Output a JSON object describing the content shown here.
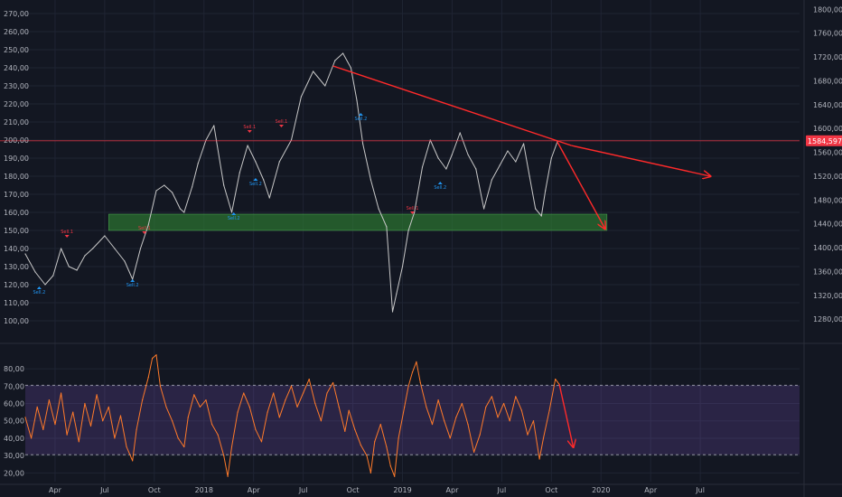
{
  "chart_data": [
    {
      "type": "line",
      "panel": "price",
      "title": "",
      "left_axis": {
        "ylim": [
          90,
          275
        ],
        "ticks": [
          "100,00",
          "110,00",
          "120,00",
          "130,00",
          "140,00",
          "150,00",
          "160,00",
          "170,00",
          "180,00",
          "190,00",
          "200,00",
          "210,00",
          "220,00",
          "230,00",
          "240,00",
          "250,00",
          "260,00",
          "270,00"
        ]
      },
      "right_axis": {
        "ylim": [
          1247,
          1808
        ],
        "ticks": [
          "1280,000",
          "1320,000",
          "1360,000",
          "1400,000",
          "1440,000",
          "1480,000",
          "1520,000",
          "1560,000",
          "1600,000",
          "1640,000",
          "1680,000",
          "1720,000",
          "1760,000",
          "1800,000"
        ]
      },
      "x_axis": {
        "range": [
          2017.1,
          2021.0
        ],
        "ticks": [
          {
            "t": 2017.25,
            "label": "Apr"
          },
          {
            "t": 2017.5,
            "label": "Jul"
          },
          {
            "t": 2017.75,
            "label": "Oct"
          },
          {
            "t": 2018.0,
            "label": "2018"
          },
          {
            "t": 2018.25,
            "label": "Apr"
          },
          {
            "t": 2018.5,
            "label": "Jul"
          },
          {
            "t": 2018.75,
            "label": "Oct"
          },
          {
            "t": 2019.0,
            "label": "2019"
          },
          {
            "t": 2019.25,
            "label": "Apr"
          },
          {
            "t": 2019.5,
            "label": "Jul"
          },
          {
            "t": 2019.75,
            "label": "Oct"
          },
          {
            "t": 2020.0,
            "label": "2020"
          },
          {
            "t": 2020.25,
            "label": "Apr"
          },
          {
            "t": 2020.5,
            "label": "Jul"
          }
        ]
      },
      "series": [
        {
          "color": "#c8c8c8",
          "points": [
            [
              2017.1,
              137
            ],
            [
              2017.15,
              127
            ],
            [
              2017.2,
              120
            ],
            [
              2017.24,
              125
            ],
            [
              2017.28,
              140
            ],
            [
              2017.32,
              130
            ],
            [
              2017.36,
              128
            ],
            [
              2017.4,
              136
            ],
            [
              2017.44,
              140
            ],
            [
              2017.5,
              147
            ],
            [
              2017.55,
              140
            ],
            [
              2017.6,
              133
            ],
            [
              2017.64,
              123
            ],
            [
              2017.68,
              140
            ],
            [
              2017.72,
              153
            ],
            [
              2017.76,
              172
            ],
            [
              2017.8,
              175
            ],
            [
              2017.84,
              171
            ],
            [
              2017.88,
              162
            ],
            [
              2017.9,
              160
            ],
            [
              2017.94,
              174
            ],
            [
              2017.97,
              187
            ],
            [
              2018.01,
              200
            ],
            [
              2018.05,
              208
            ],
            [
              2018.1,
              175
            ],
            [
              2018.14,
              160
            ],
            [
              2018.18,
              182
            ],
            [
              2018.22,
              197
            ],
            [
              2018.26,
              188
            ],
            [
              2018.3,
              178
            ],
            [
              2018.33,
              168
            ],
            [
              2018.38,
              188
            ],
            [
              2018.44,
              200
            ],
            [
              2018.49,
              224
            ],
            [
              2018.55,
              238
            ],
            [
              2018.61,
              230
            ],
            [
              2018.66,
              244
            ],
            [
              2018.7,
              248
            ],
            [
              2018.74,
              240
            ],
            [
              2018.77,
              222
            ],
            [
              2018.8,
              198
            ],
            [
              2018.84,
              178
            ],
            [
              2018.88,
              162
            ],
            [
              2018.92,
              152
            ],
            [
              2018.95,
              105
            ],
            [
              2018.97,
              115
            ],
            [
              2019.0,
              130
            ],
            [
              2019.03,
              150
            ],
            [
              2019.06,
              160
            ],
            [
              2019.1,
              185
            ],
            [
              2019.14,
              200
            ],
            [
              2019.18,
              190
            ],
            [
              2019.22,
              184
            ],
            [
              2019.25,
              192
            ],
            [
              2019.29,
              204
            ],
            [
              2019.33,
              192
            ],
            [
              2019.37,
              184
            ],
            [
              2019.41,
              162
            ],
            [
              2019.45,
              178
            ],
            [
              2019.49,
              186
            ],
            [
              2019.53,
              194
            ],
            [
              2019.57,
              188
            ],
            [
              2019.61,
              198
            ],
            [
              2019.64,
              180
            ],
            [
              2019.67,
              162
            ],
            [
              2019.7,
              158
            ],
            [
              2019.72,
              172
            ],
            [
              2019.75,
              190
            ],
            [
              2019.78,
              199
            ]
          ]
        }
      ],
      "support_zone": {
        "ymin": 150,
        "ymax": 159,
        "t_start": 2017.52,
        "t_end": 2020.03,
        "color": "#2e7d32"
      },
      "resistance_trendline": {
        "from": [
          2018.65,
          241
        ],
        "to": [
          2019.85,
          197
        ],
        "color": "#ff2a2a"
      },
      "projection_arrows": [
        {
          "from": [
            2019.85,
            197
          ],
          "to": [
            2020.55,
            180
          ],
          "color": "#ff2a2a"
        },
        {
          "from": [
            2019.78,
            199
          ],
          "to": [
            2020.02,
            151
          ],
          "color": "#ff2a2a"
        }
      ],
      "horizontal_line": {
        "y": 199.6,
        "color": "#f23645"
      },
      "price_label": "1584,597",
      "signals": [
        {
          "kind": "buy",
          "t": 2017.17,
          "y": 120,
          "label": "Sell.2"
        },
        {
          "kind": "sell",
          "t": 2017.31,
          "y": 145,
          "label": "Sell.1"
        },
        {
          "kind": "buy",
          "t": 2017.64,
          "y": 124,
          "label": "Sell.2"
        },
        {
          "kind": "sell",
          "t": 2017.7,
          "y": 147,
          "label": "Sell.1"
        },
        {
          "kind": "buy",
          "t": 2018.15,
          "y": 161,
          "label": "Sell.2"
        },
        {
          "kind": "sell",
          "t": 2018.23,
          "y": 203,
          "label": "Sell.1"
        },
        {
          "kind": "buy",
          "t": 2018.26,
          "y": 180,
          "label": "Sell.2"
        },
        {
          "kind": "sell",
          "t": 2018.39,
          "y": 206,
          "label": "Sell.1"
        },
        {
          "kind": "buy",
          "t": 2018.79,
          "y": 216,
          "label": "Sell.2"
        },
        {
          "kind": "buy",
          "t": 2019.19,
          "y": 178,
          "label": "Sell.2"
        },
        {
          "kind": "sell",
          "t": 2019.05,
          "y": 158,
          "label": "Sell.1"
        }
      ]
    },
    {
      "type": "line",
      "panel": "oscillator",
      "title": "",
      "ylim": [
        15,
        92
      ],
      "ticks": [
        "20,00",
        "30,00",
        "40,00",
        "50,00",
        "60,00",
        "70,00",
        "80,00"
      ],
      "band": {
        "upper": 70.5,
        "lower": 30.5,
        "color": "#7e57c2"
      },
      "series": [
        {
          "color": "#ff7a2a",
          "points": [
            [
              2017.1,
              52
            ],
            [
              2017.13,
              40
            ],
            [
              2017.16,
              58
            ],
            [
              2017.19,
              45
            ],
            [
              2017.22,
              62
            ],
            [
              2017.25,
              48
            ],
            [
              2017.28,
              66
            ],
            [
              2017.31,
              42
            ],
            [
              2017.34,
              55
            ],
            [
              2017.37,
              38
            ],
            [
              2017.4,
              60
            ],
            [
              2017.43,
              47
            ],
            [
              2017.46,
              65
            ],
            [
              2017.49,
              50
            ],
            [
              2017.52,
              58
            ],
            [
              2017.55,
              40
            ],
            [
              2017.58,
              53
            ],
            [
              2017.61,
              35
            ],
            [
              2017.64,
              27
            ],
            [
              2017.66,
              45
            ],
            [
              2017.69,
              62
            ],
            [
              2017.72,
              75
            ],
            [
              2017.74,
              86
            ],
            [
              2017.76,
              88
            ],
            [
              2017.78,
              70
            ],
            [
              2017.81,
              58
            ],
            [
              2017.84,
              50
            ],
            [
              2017.87,
              40
            ],
            [
              2017.9,
              35
            ],
            [
              2017.92,
              52
            ],
            [
              2017.95,
              65
            ],
            [
              2017.98,
              58
            ],
            [
              2018.01,
              62
            ],
            [
              2018.04,
              48
            ],
            [
              2018.07,
              42
            ],
            [
              2018.1,
              30
            ],
            [
              2018.12,
              18
            ],
            [
              2018.14,
              35
            ],
            [
              2018.17,
              55
            ],
            [
              2018.2,
              66
            ],
            [
              2018.23,
              58
            ],
            [
              2018.26,
              45
            ],
            [
              2018.29,
              38
            ],
            [
              2018.32,
              55
            ],
            [
              2018.35,
              66
            ],
            [
              2018.38,
              52
            ],
            [
              2018.41,
              62
            ],
            [
              2018.44,
              70
            ],
            [
              2018.47,
              58
            ],
            [
              2018.5,
              66
            ],
            [
              2018.53,
              74
            ],
            [
              2018.56,
              60
            ],
            [
              2018.59,
              50
            ],
            [
              2018.62,
              66
            ],
            [
              2018.65,
              72
            ],
            [
              2018.68,
              58
            ],
            [
              2018.71,
              44
            ],
            [
              2018.73,
              56
            ],
            [
              2018.76,
              45
            ],
            [
              2018.79,
              36
            ],
            [
              2018.82,
              30
            ],
            [
              2018.84,
              20
            ],
            [
              2018.86,
              38
            ],
            [
              2018.89,
              48
            ],
            [
              2018.92,
              35
            ],
            [
              2018.94,
              24
            ],
            [
              2018.96,
              18
            ],
            [
              2018.98,
              40
            ],
            [
              2019.01,
              58
            ],
            [
              2019.03,
              70
            ],
            [
              2019.05,
              78
            ],
            [
              2019.07,
              84
            ],
            [
              2019.09,
              72
            ],
            [
              2019.12,
              58
            ],
            [
              2019.15,
              48
            ],
            [
              2019.18,
              62
            ],
            [
              2019.21,
              50
            ],
            [
              2019.24,
              40
            ],
            [
              2019.27,
              52
            ],
            [
              2019.3,
              60
            ],
            [
              2019.33,
              48
            ],
            [
              2019.36,
              32
            ],
            [
              2019.39,
              42
            ],
            [
              2019.42,
              58
            ],
            [
              2019.45,
              64
            ],
            [
              2019.48,
              52
            ],
            [
              2019.51,
              60
            ],
            [
              2019.54,
              50
            ],
            [
              2019.57,
              64
            ],
            [
              2019.6,
              56
            ],
            [
              2019.63,
              42
            ],
            [
              2019.66,
              50
            ],
            [
              2019.69,
              28
            ],
            [
              2019.71,
              40
            ],
            [
              2019.74,
              56
            ],
            [
              2019.77,
              74
            ],
            [
              2019.79,
              71
            ]
          ]
        }
      ],
      "projection_arrows": [
        {
          "from": [
            2019.79,
            71
          ],
          "to": [
            2019.86,
            35
          ],
          "color": "#ff2a2a"
        }
      ]
    }
  ]
}
